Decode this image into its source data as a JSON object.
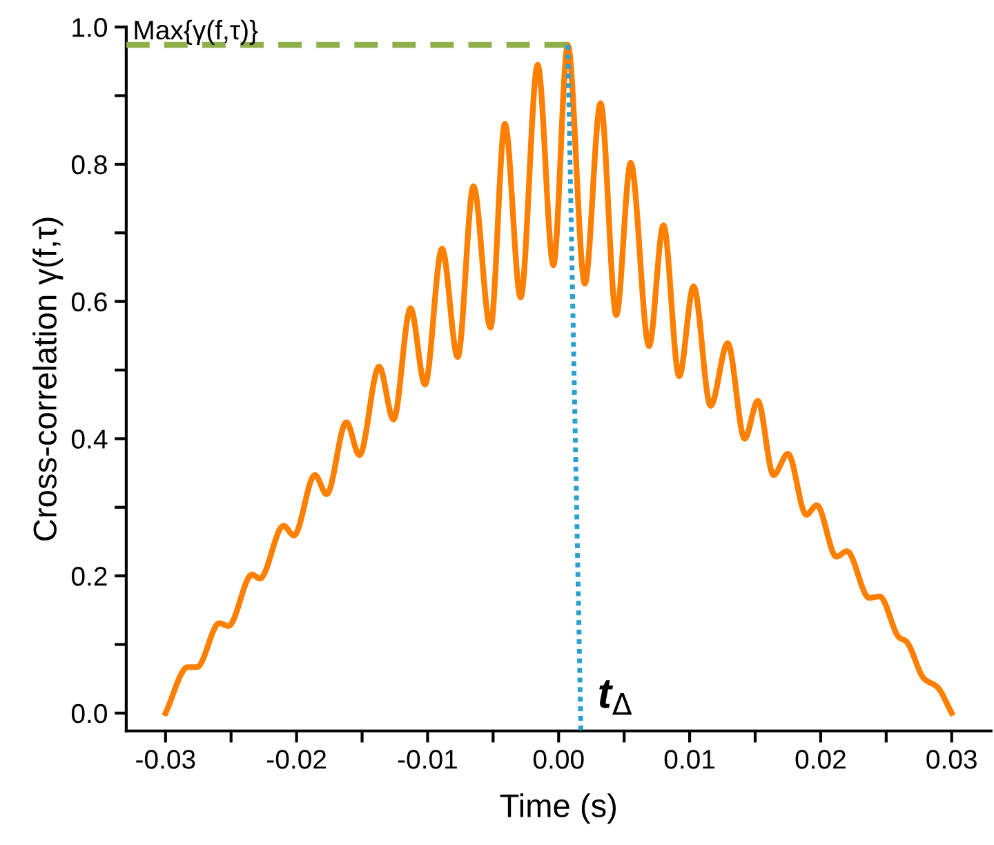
{
  "chart_data": {
    "type": "line",
    "xlabel": "Time (s)",
    "ylabel": "Cross-correlation γ(f,τ)",
    "xlim": [
      -0.033,
      0.033
    ],
    "ylim": [
      -0.026,
      1.0
    ],
    "xticks": [
      {
        "value": -0.03,
        "label": "-0.03"
      },
      {
        "value": -0.025,
        "label": null
      },
      {
        "value": -0.02,
        "label": "-0.02"
      },
      {
        "value": -0.015,
        "label": null
      },
      {
        "value": -0.01,
        "label": "-0.01"
      },
      {
        "value": -0.005,
        "label": null
      },
      {
        "value": 0,
        "label": "0.00"
      },
      {
        "value": 0.005,
        "label": null
      },
      {
        "value": 0.01,
        "label": "0.01"
      },
      {
        "value": 0.015,
        "label": null
      },
      {
        "value": 0.02,
        "label": "0.02"
      },
      {
        "value": 0.025,
        "label": null
      },
      {
        "value": 0.03,
        "label": "0.03"
      }
    ],
    "yticks": [
      {
        "value": 0,
        "label": "0.0"
      },
      {
        "value": 0.1,
        "label": null
      },
      {
        "value": 0.2,
        "label": "0.2"
      },
      {
        "value": 0.3,
        "label": null
      },
      {
        "value": 0.4,
        "label": "0.4"
      },
      {
        "value": 0.5,
        "label": null
      },
      {
        "value": 0.6,
        "label": "0.6"
      },
      {
        "value": 0.7,
        "label": null
      },
      {
        "value": 0.8,
        "label": "0.8"
      },
      {
        "value": 0.9,
        "label": null
      },
      {
        "value": 1.0,
        "label": "1.0"
      }
    ],
    "grid": false,
    "legend": false,
    "marker": "none",
    "series": [
      {
        "color": "#ff7f00",
        "line_style": "solid",
        "x": [
          -0.03,
          -0.0283,
          -0.0276,
          -0.0259,
          -0.0252,
          -0.0234,
          -0.0228,
          -0.021,
          -0.0202,
          -0.0186,
          -0.0177,
          -0.0162,
          -0.0152,
          -0.0137,
          -0.0126,
          -0.0113,
          -0.0102,
          -0.0089,
          -0.0077,
          -0.0065,
          -0.0052,
          -0.0041,
          -0.0029,
          -0.0016,
          -0.0004,
          0.0007,
          0.002,
          0.0032,
          0.0044,
          0.0055,
          0.0069,
          0.008,
          0.0092,
          0.0103,
          0.0116,
          0.0129,
          0.0142,
          0.0152,
          0.0164,
          0.0175,
          0.0189,
          0.0197,
          0.0212,
          0.022,
          0.0237,
          0.0245,
          0.026,
          0.0265,
          0.0279,
          0.0289,
          0.03
        ],
        "values": [
          0.0,
          0.067,
          0.067,
          0.131,
          0.127,
          0.202,
          0.196,
          0.273,
          0.259,
          0.347,
          0.319,
          0.424,
          0.376,
          0.505,
          0.428,
          0.59,
          0.479,
          0.677,
          0.519,
          0.768,
          0.562,
          0.859,
          0.606,
          0.945,
          0.653,
          0.974,
          0.626,
          0.889,
          0.58,
          0.802,
          0.535,
          0.711,
          0.491,
          0.622,
          0.448,
          0.539,
          0.4,
          0.455,
          0.347,
          0.378,
          0.289,
          0.303,
          0.228,
          0.236,
          0.168,
          0.17,
          0.11,
          0.105,
          0.05,
          0.038,
          0.0
        ]
      },
      {
        "color": "#8faf4a",
        "line_style": "dashed",
        "x": [
          -0.033,
          0.0007
        ],
        "values": [
          0.974,
          0.974
        ]
      },
      {
        "color": "#2aa0d0",
        "line_style": "dotted",
        "x": [
          0.0007,
          0.0017
        ],
        "values": [
          0.974,
          -0.026
        ]
      }
    ],
    "annotations": [
      {
        "text": "Max{γ(f,τ)}",
        "x": -0.0325,
        "y": 0.974
      },
      "t$_{Δ}$"
    ]
  }
}
